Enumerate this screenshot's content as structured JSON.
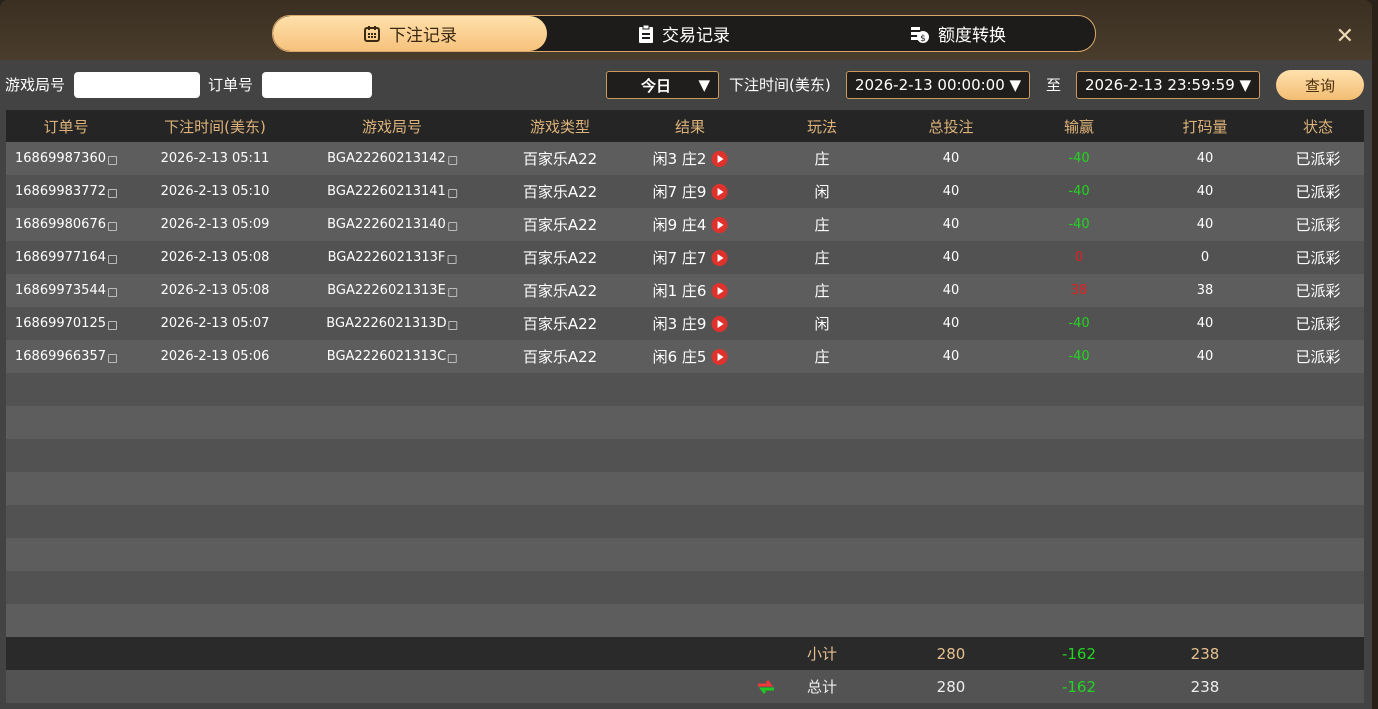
{
  "tabs": [
    {
      "label": "下注记录",
      "icon": "calendar-icon",
      "active": true
    },
    {
      "label": "交易记录",
      "icon": "clipboard-icon"
    },
    {
      "label": "额度转换",
      "icon": "coins-icon"
    }
  ],
  "filters": {
    "game_round_label": "游戏局号",
    "game_round_value": "",
    "order_label": "订单号",
    "order_value": "",
    "period": "今日",
    "time_label": "下注时间(美东)",
    "start": "2026-2-13 00:00:00",
    "to_label": "至",
    "end": "2026-2-13 23:59:59",
    "query": "查询"
  },
  "columns": [
    "订单号",
    "下注时间(美东)",
    "游戏局号",
    "游戏类型",
    "结果",
    "玩法",
    "总投注",
    "输赢",
    "打码量",
    "状态"
  ],
  "rows": [
    {
      "order": "16869987360",
      "time": "2026-2-13 05:11",
      "round": "BGA22260213142",
      "game": "百家乐A22",
      "result": "闲3 庄2",
      "play": "庄",
      "bet": "40",
      "win": "-40",
      "win_color": "green",
      "code": "40",
      "status": "已派彩"
    },
    {
      "order": "16869983772",
      "time": "2026-2-13 05:10",
      "round": "BGA22260213141",
      "game": "百家乐A22",
      "result": "闲7 庄9",
      "play": "闲",
      "bet": "40",
      "win": "-40",
      "win_color": "green",
      "code": "40",
      "status": "已派彩"
    },
    {
      "order": "16869980676",
      "time": "2026-2-13 05:09",
      "round": "BGA22260213140",
      "game": "百家乐A22",
      "result": "闲9 庄4",
      "play": "庄",
      "bet": "40",
      "win": "-40",
      "win_color": "green",
      "code": "40",
      "status": "已派彩"
    },
    {
      "order": "16869977164",
      "time": "2026-2-13 05:08",
      "round": "BGA2226021313F",
      "game": "百家乐A22",
      "result": "闲7 庄7",
      "play": "庄",
      "bet": "40",
      "win": "0",
      "win_color": "red",
      "code": "0",
      "status": "已派彩"
    },
    {
      "order": "16869973544",
      "time": "2026-2-13 05:08",
      "round": "BGA2226021313E",
      "game": "百家乐A22",
      "result": "闲1 庄6",
      "play": "庄",
      "bet": "40",
      "win": "38",
      "win_color": "red",
      "code": "38",
      "status": "已派彩"
    },
    {
      "order": "16869970125",
      "time": "2026-2-13 05:07",
      "round": "BGA2226021313D",
      "game": "百家乐A22",
      "result": "闲3 庄9",
      "play": "闲",
      "bet": "40",
      "win": "-40",
      "win_color": "green",
      "code": "40",
      "status": "已派彩"
    },
    {
      "order": "16869966357",
      "time": "2026-2-13 05:06",
      "round": "BGA2226021313C",
      "game": "百家乐A22",
      "result": "闲6 庄5",
      "play": "庄",
      "bet": "40",
      "win": "-40",
      "win_color": "green",
      "code": "40",
      "status": "已派彩"
    }
  ],
  "subtotal": {
    "label": "小计",
    "bet": "280",
    "win": "-162",
    "code": "238"
  },
  "total": {
    "label": "总计",
    "bet": "280",
    "win": "-162",
    "code": "238"
  },
  "colors": {
    "accent": "#f6c27c",
    "win_green": "#22d422",
    "loss_red": "#e02020"
  }
}
